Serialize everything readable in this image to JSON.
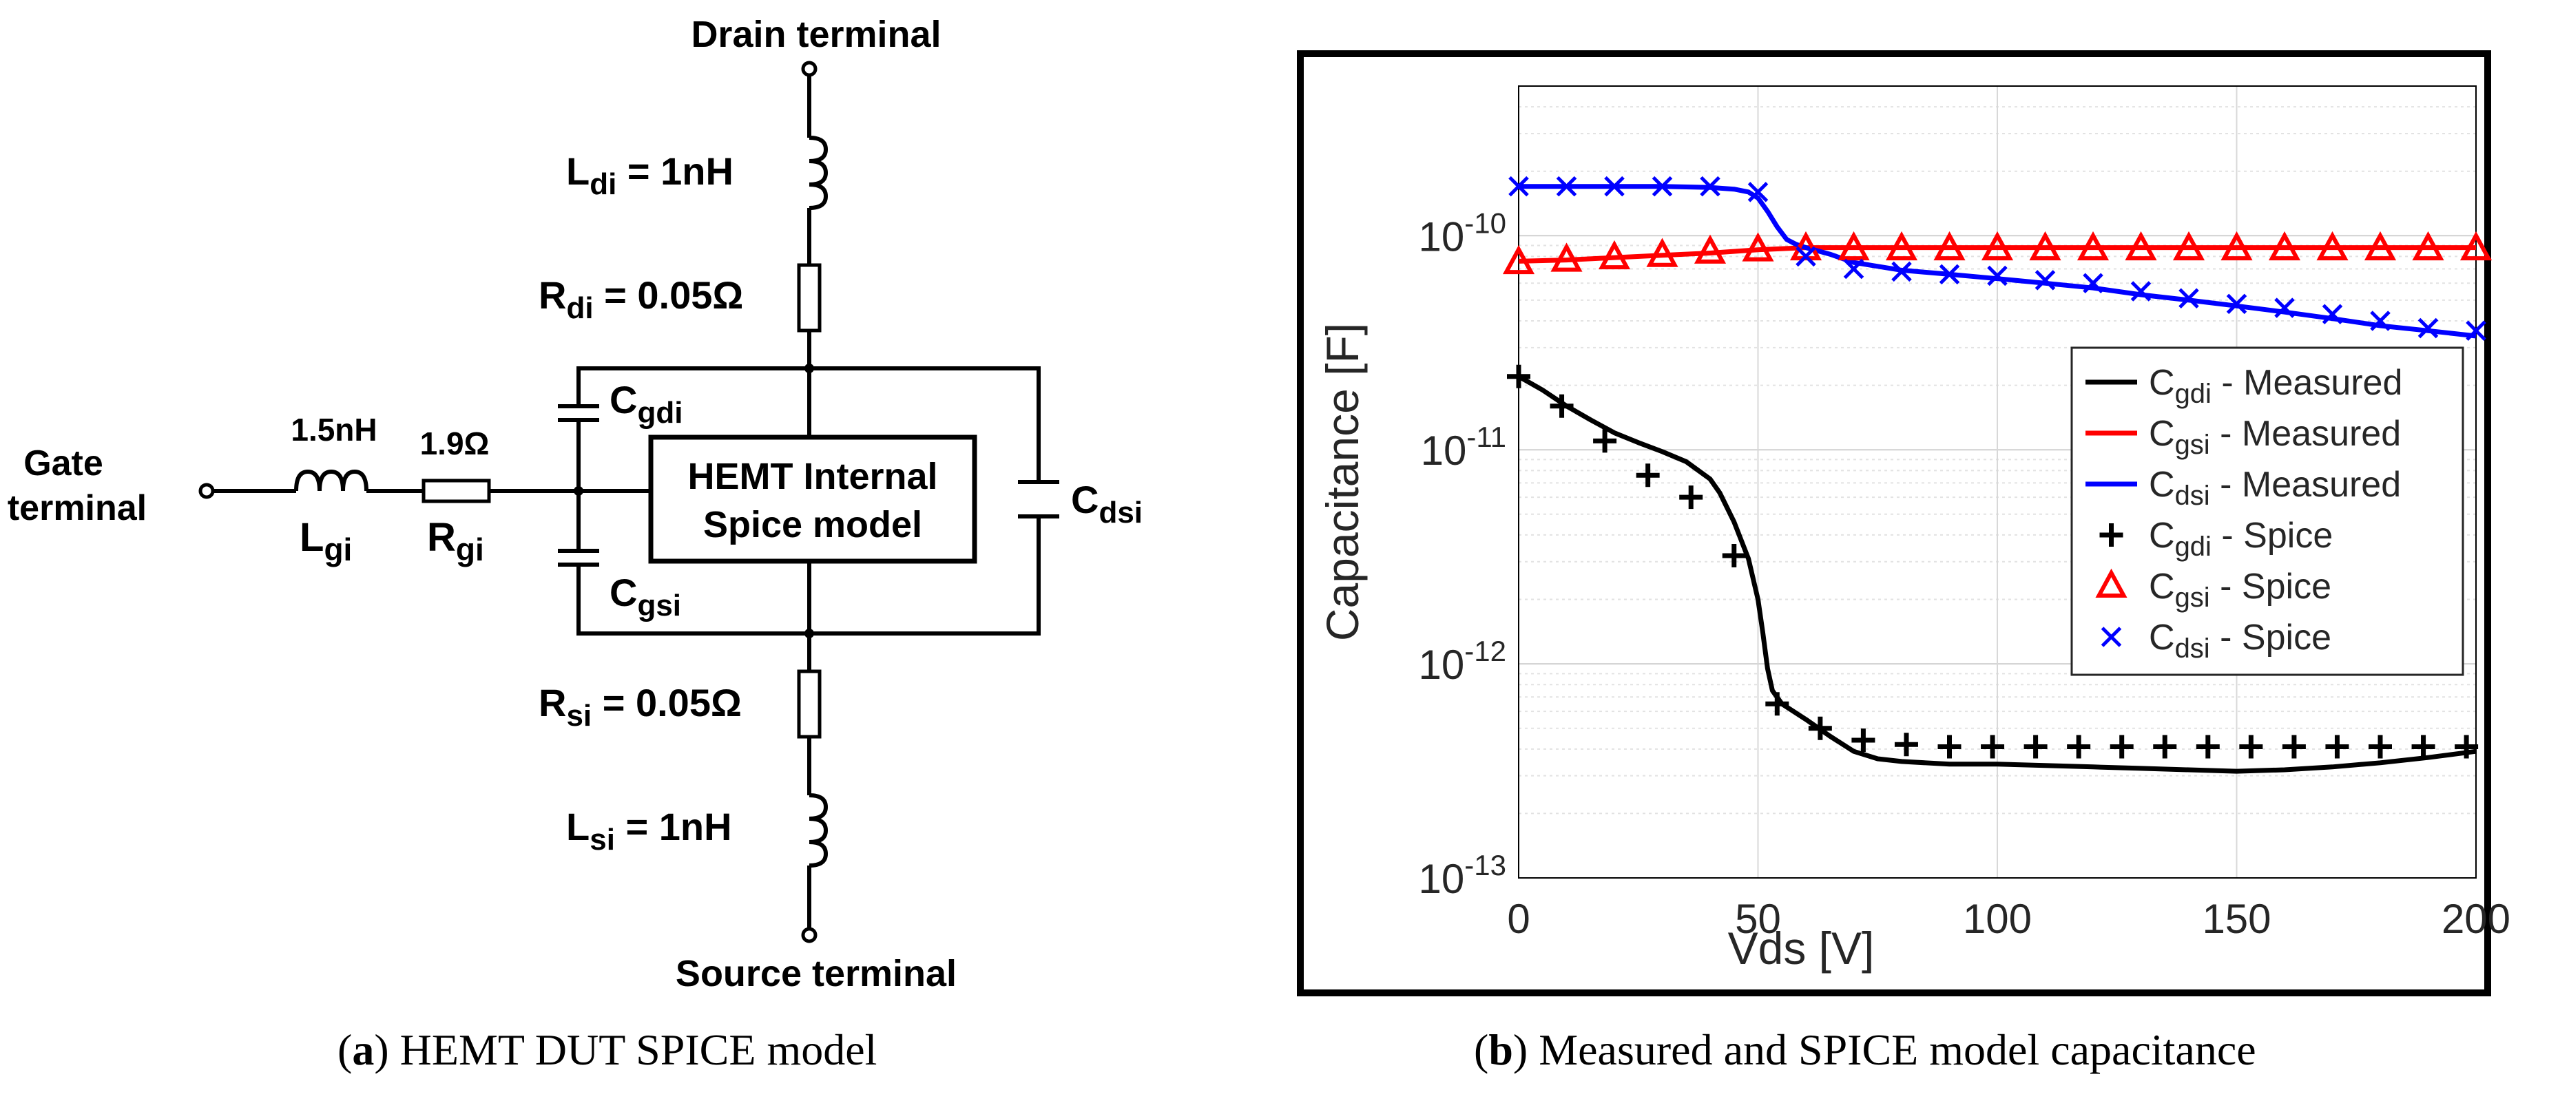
{
  "schematic": {
    "drain_terminal": "Drain terminal",
    "source_terminal": "Source terminal",
    "gate_terminal_line1": "Gate",
    "gate_terminal_line2": "terminal",
    "l_gi_value": "1.5nH",
    "l_gi_name": "L",
    "l_gi_sub": "gi",
    "r_gi_value": "1.9Ω",
    "r_gi_name": "R",
    "r_gi_sub": "gi",
    "l_di_name": "L",
    "l_di_sub": "di",
    "l_di_value": " = 1nH",
    "r_di_name": "R",
    "r_di_sub": "di",
    "r_di_value": " = 0.05Ω",
    "r_si_name": "R",
    "r_si_sub": "si",
    "r_si_value": " = 0.05Ω",
    "l_si_name": "L",
    "l_si_sub": "si",
    "l_si_value": " = 1nH",
    "c_gdi_name": "C",
    "c_gdi_sub": "gdi",
    "c_gsi_name": "C",
    "c_gsi_sub": "gsi",
    "c_dsi_name": "C",
    "c_dsi_sub": "dsi",
    "hemt_line1": "HEMT Internal",
    "hemt_line2": "Spice model"
  },
  "captions": {
    "a_label": "a",
    "a_text": " HEMT DUT SPICE model",
    "b_label": "b",
    "b_text": " Measured and SPICE model capacitance"
  },
  "chart_data": {
    "type": "line",
    "xlabel": "Vds [V]",
    "ylabel": "Capacitance [F]",
    "xlim": [
      0,
      200
    ],
    "ylim": [
      1e-13,
      5e-10
    ],
    "yscale": "log",
    "grid": true,
    "xticks": [
      0,
      50,
      100,
      150,
      200
    ],
    "yticks": [
      {
        "value": 1e-10,
        "base": "10",
        "exp": "-10"
      },
      {
        "value": 1e-11,
        "base": "10",
        "exp": "-11"
      },
      {
        "value": 1e-12,
        "base": "10",
        "exp": "-12"
      },
      {
        "value": 1e-13,
        "base": "10",
        "exp": "-13"
      }
    ],
    "legend_position": "right",
    "series": [
      {
        "name": "Cgdi - Measured",
        "sym": "C",
        "sub": "gdi",
        "suffix": " - Measured",
        "kind": "line",
        "color": "#000000",
        "x": [
          0,
          5,
          10,
          15,
          20,
          25,
          30,
          35,
          40,
          42,
          45,
          48,
          50,
          51,
          52,
          53,
          55,
          60,
          65,
          70,
          75,
          80,
          90,
          100,
          110,
          120,
          130,
          140,
          150,
          160,
          170,
          180,
          190,
          200
        ],
        "y": [
          2.2e-11,
          1.9e-11,
          1.6e-11,
          1.38e-11,
          1.2e-11,
          1.08e-11,
          9.8e-12,
          8.8e-12,
          7.3e-12,
          6.3e-12,
          4.6e-12,
          3.1e-12,
          2e-12,
          1.4e-12,
          9.5e-13,
          7.5e-13,
          6.5e-13,
          5.5e-13,
          4.6e-13,
          3.9e-13,
          3.6e-13,
          3.5e-13,
          3.4e-13,
          3.4e-13,
          3.35e-13,
          3.3e-13,
          3.25e-13,
          3.2e-13,
          3.15e-13,
          3.2e-13,
          3.3e-13,
          3.45e-13,
          3.65e-13,
          3.9e-13
        ]
      },
      {
        "name": "Cgsi - Measured",
        "sym": "C",
        "sub": "gsi",
        "suffix": " - Measured",
        "kind": "line",
        "color": "#ff0000",
        "x": [
          0,
          10,
          20,
          30,
          40,
          50,
          60,
          70,
          100,
          150,
          200
        ],
        "y": [
          7.6e-11,
          7.7e-11,
          7.9e-11,
          8.1e-11,
          8.3e-11,
          8.6e-11,
          8.8e-11,
          8.8e-11,
          8.8e-11,
          8.8e-11,
          8.8e-11
        ]
      },
      {
        "name": "Cdsi - Measured",
        "sym": "C",
        "sub": "dsi",
        "suffix": " - Measured",
        "kind": "line",
        "color": "#0000ff",
        "x": [
          0,
          10,
          20,
          30,
          40,
          45,
          48,
          50,
          52,
          54,
          56,
          58,
          60,
          65,
          70,
          80,
          90,
          100,
          110,
          120,
          130,
          140,
          150,
          160,
          170,
          180,
          190,
          200
        ],
        "y": [
          1.7e-10,
          1.7e-10,
          1.7e-10,
          1.7e-10,
          1.68e-10,
          1.65e-10,
          1.6e-10,
          1.5e-10,
          1.3e-10,
          1.1e-10,
          9.6e-11,
          9.1e-11,
          8.8e-11,
          8.2e-11,
          7.5e-11,
          6.9e-11,
          6.6e-11,
          6.3e-11,
          6e-11,
          5.7e-11,
          5.3e-11,
          5e-11,
          4.7e-11,
          4.4e-11,
          4.1e-11,
          3.8e-11,
          3.6e-11,
          3.4e-11
        ]
      },
      {
        "name": "Cgdi - Spice",
        "sym": "C",
        "sub": "gdi",
        "suffix": " - Spice",
        "kind": "marker",
        "marker": "plus",
        "color": "#000000",
        "x": [
          0,
          9,
          18,
          27,
          36,
          45,
          54,
          63,
          72,
          81,
          90,
          99,
          108,
          117,
          126,
          135,
          144,
          153,
          162,
          171,
          180,
          189,
          198
        ],
        "y": [
          2.2e-11,
          1.6e-11,
          1.1e-11,
          7.6e-12,
          6e-12,
          3.2e-12,
          6.5e-13,
          5e-13,
          4.4e-13,
          4.2e-13,
          4.1e-13,
          4.1e-13,
          4.1e-13,
          4.1e-13,
          4.1e-13,
          4.1e-13,
          4.1e-13,
          4.1e-13,
          4.1e-13,
          4.1e-13,
          4.1e-13,
          4.1e-13,
          4.1e-13
        ]
      },
      {
        "name": "Cgsi - Spice",
        "sym": "C",
        "sub": "gsi",
        "suffix": " - Spice",
        "kind": "marker",
        "marker": "triangle",
        "color": "#ff0000",
        "x": [
          0,
          10,
          20,
          30,
          40,
          50,
          60,
          70,
          80,
          90,
          100,
          110,
          120,
          130,
          140,
          150,
          160,
          170,
          180,
          190,
          200
        ],
        "y": [
          7.5e-11,
          7.7e-11,
          7.9e-11,
          8.1e-11,
          8.4e-11,
          8.6e-11,
          8.7e-11,
          8.7e-11,
          8.7e-11,
          8.7e-11,
          8.7e-11,
          8.7e-11,
          8.7e-11,
          8.7e-11,
          8.7e-11,
          8.7e-11,
          8.7e-11,
          8.7e-11,
          8.7e-11,
          8.7e-11,
          8.7e-11
        ]
      },
      {
        "name": "Cdsi - Spice",
        "sym": "C",
        "sub": "dsi",
        "suffix": " - Spice",
        "kind": "marker",
        "marker": "x",
        "color": "#0000ff",
        "x": [
          0,
          10,
          20,
          30,
          40,
          50,
          60,
          70,
          80,
          90,
          100,
          110,
          120,
          130,
          140,
          150,
          160,
          170,
          180,
          190,
          200
        ],
        "y": [
          1.7e-10,
          1.7e-10,
          1.7e-10,
          1.7e-10,
          1.7e-10,
          1.6e-10,
          8e-11,
          7e-11,
          6.8e-11,
          6.6e-11,
          6.5e-11,
          6.2e-11,
          6e-11,
          5.5e-11,
          5.1e-11,
          4.8e-11,
          4.6e-11,
          4.3e-11,
          4e-11,
          3.7e-11,
          3.6e-11
        ]
      }
    ]
  }
}
